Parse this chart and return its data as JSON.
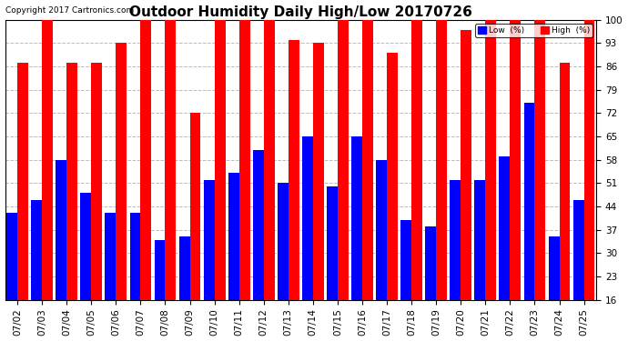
{
  "title": "Outdoor Humidity Daily High/Low 20170726",
  "copyright": "Copyright 2017 Cartronics.com",
  "dates": [
    "07/02",
    "07/03",
    "07/04",
    "07/05",
    "07/06",
    "07/07",
    "07/08",
    "07/09",
    "07/10",
    "07/11",
    "07/12",
    "07/13",
    "07/14",
    "07/15",
    "07/16",
    "07/17",
    "07/18",
    "07/19",
    "07/20",
    "07/21",
    "07/22",
    "07/23",
    "07/24",
    "07/25"
  ],
  "high": [
    87,
    100,
    87,
    87,
    93,
    100,
    100,
    72,
    100,
    100,
    100,
    94,
    93,
    100,
    100,
    90,
    100,
    100,
    97,
    100,
    100,
    100,
    87,
    100
  ],
  "low": [
    42,
    46,
    58,
    48,
    42,
    42,
    34,
    35,
    52,
    54,
    61,
    51,
    65,
    50,
    65,
    58,
    40,
    38,
    52,
    52,
    59,
    75,
    35,
    46
  ],
  "ylim_min": 16,
  "ylim_max": 100,
  "yticks": [
    16,
    23,
    30,
    37,
    44,
    51,
    58,
    65,
    72,
    79,
    86,
    93,
    100
  ],
  "bar_color_high": "#ff0000",
  "bar_color_low": "#0000ff",
  "background_color": "#ffffff",
  "grid_color": "#bbbbbb",
  "title_fontsize": 11,
  "tick_fontsize": 7.5,
  "legend_low_label": "Low  (%)",
  "legend_high_label": "High  (%)"
}
